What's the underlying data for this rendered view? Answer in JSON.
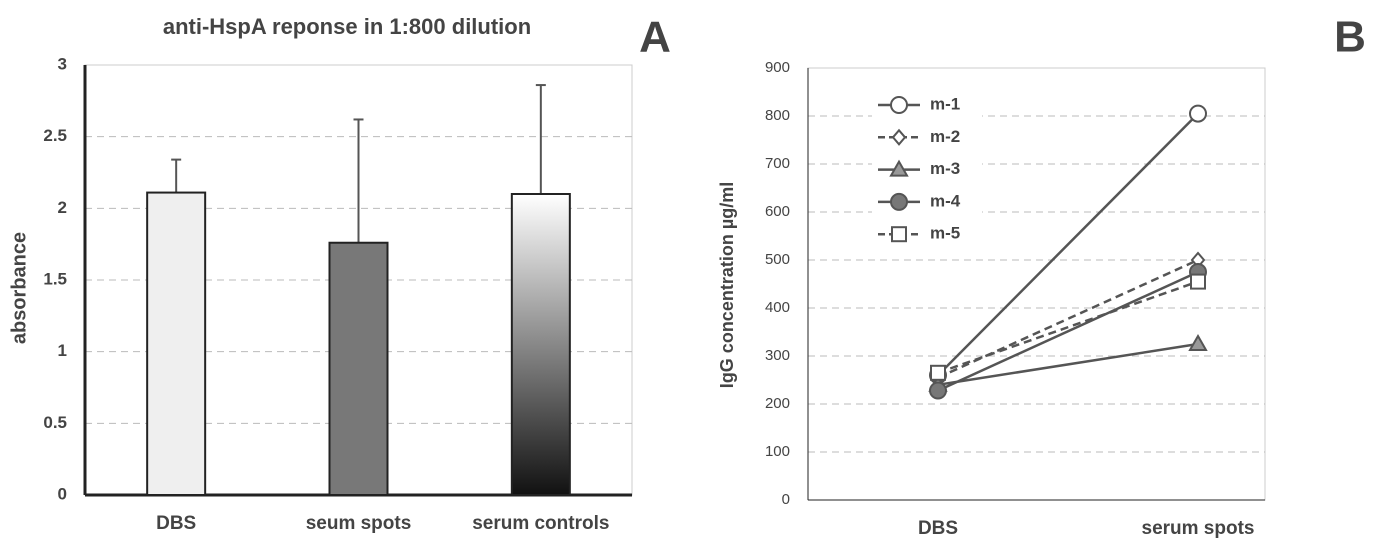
{
  "chart_data": [
    {
      "type": "bar",
      "title": "anti-HspA reponse in 1:800 dilution",
      "panel_label": "A",
      "y_label": "absorbance",
      "categories": [
        "DBS",
        "seum spots",
        "serum controls"
      ],
      "values": [
        2.11,
        1.76,
        2.1
      ],
      "errors": [
        0.23,
        0.86,
        0.76
      ],
      "colors": [
        "#efefef",
        "#787878",
        [
          "#ffffff",
          "#111111"
        ]
      ],
      "error_color": "#555555",
      "ylim": [
        0,
        3
      ],
      "yticks": [
        0,
        0.5,
        1,
        1.5,
        2,
        2.5,
        3
      ],
      "grid": true
    },
    {
      "type": "line",
      "panel_label": "B",
      "y_label": "IgG concentration µg/ml",
      "categories": [
        "DBS",
        "serum spots"
      ],
      "series": [
        {
          "name": "m-1",
          "color": "#555555",
          "marker": "circle-open",
          "dashed": false,
          "values": [
            260,
            805
          ]
        },
        {
          "name": "m-2",
          "color": "#555555",
          "marker": "diamond-open",
          "dashed": true,
          "values": [
            255,
            500
          ]
        },
        {
          "name": "m-3",
          "color": "#555555",
          "marker": "triangle",
          "dashed": false,
          "values": [
            240,
            325
          ]
        },
        {
          "name": "m-4",
          "color": "#555555",
          "marker": "circle",
          "dashed": false,
          "values": [
            228,
            475
          ]
        },
        {
          "name": "m-5",
          "color": "#555555",
          "marker": "square-open",
          "dashed": true,
          "values": [
            265,
            455
          ]
        }
      ],
      "ylim": [
        0,
        900
      ],
      "yticks": [
        0,
        100,
        200,
        300,
        400,
        500,
        600,
        700,
        800,
        900
      ],
      "grid": true,
      "legend": "top-left"
    }
  ]
}
